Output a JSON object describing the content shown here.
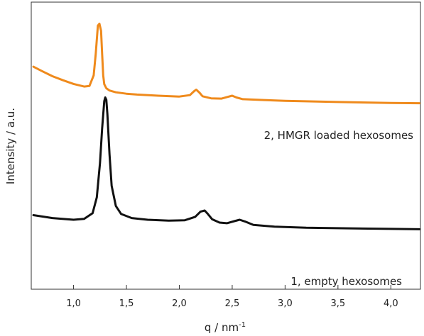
{
  "chart_data": {
    "type": "line",
    "title": "",
    "xlabel": "q / nm",
    "xlabel_superscript": "-1",
    "ylabel": "Intensity / a.u.",
    "xlim": [
      0.6,
      4.28
    ],
    "ylim": [
      0,
      1
    ],
    "x_ticks": [
      "1,0",
      "1,5",
      "2,0",
      "2,5",
      "3,0",
      "3,5",
      "4,0"
    ],
    "y_ticks_shown": false,
    "grid": false,
    "series": [
      {
        "name": "2, HMGR loaded hexosomes",
        "color": "#ef8a1c",
        "x": [
          0.62,
          0.7,
          0.8,
          0.9,
          1.0,
          1.1,
          1.15,
          1.19,
          1.21,
          1.23,
          1.245,
          1.26,
          1.27,
          1.28,
          1.29,
          1.31,
          1.34,
          1.4,
          1.5,
          1.6,
          1.8,
          2.0,
          2.1,
          2.14,
          2.16,
          2.19,
          2.22,
          2.3,
          2.4,
          2.46,
          2.5,
          2.54,
          2.6,
          2.8,
          3.0,
          3.5,
          4.0,
          4.27
        ],
        "y": [
          0.775,
          0.76,
          0.742,
          0.728,
          0.715,
          0.706,
          0.708,
          0.745,
          0.82,
          0.918,
          0.925,
          0.9,
          0.82,
          0.745,
          0.714,
          0.7,
          0.692,
          0.686,
          0.681,
          0.678,
          0.674,
          0.671,
          0.676,
          0.69,
          0.695,
          0.685,
          0.672,
          0.665,
          0.664,
          0.67,
          0.674,
          0.668,
          0.662,
          0.659,
          0.656,
          0.652,
          0.649,
          0.648
        ]
      },
      {
        "name": "1, empty hexosomes",
        "color": "#111111",
        "x": [
          0.62,
          0.8,
          1.0,
          1.1,
          1.18,
          1.22,
          1.25,
          1.27,
          1.29,
          1.3,
          1.31,
          1.32,
          1.34,
          1.36,
          1.4,
          1.45,
          1.55,
          1.7,
          1.9,
          2.05,
          2.15,
          2.2,
          2.24,
          2.27,
          2.31,
          2.38,
          2.45,
          2.52,
          2.57,
          2.62,
          2.7,
          2.9,
          3.2,
          3.6,
          4.0,
          4.27
        ],
        "y": [
          0.258,
          0.248,
          0.242,
          0.245,
          0.265,
          0.32,
          0.44,
          0.56,
          0.655,
          0.668,
          0.66,
          0.61,
          0.47,
          0.36,
          0.29,
          0.262,
          0.248,
          0.242,
          0.239,
          0.24,
          0.252,
          0.27,
          0.274,
          0.262,
          0.244,
          0.232,
          0.23,
          0.237,
          0.242,
          0.236,
          0.224,
          0.218,
          0.214,
          0.212,
          0.21,
          0.209
        ]
      }
    ]
  }
}
